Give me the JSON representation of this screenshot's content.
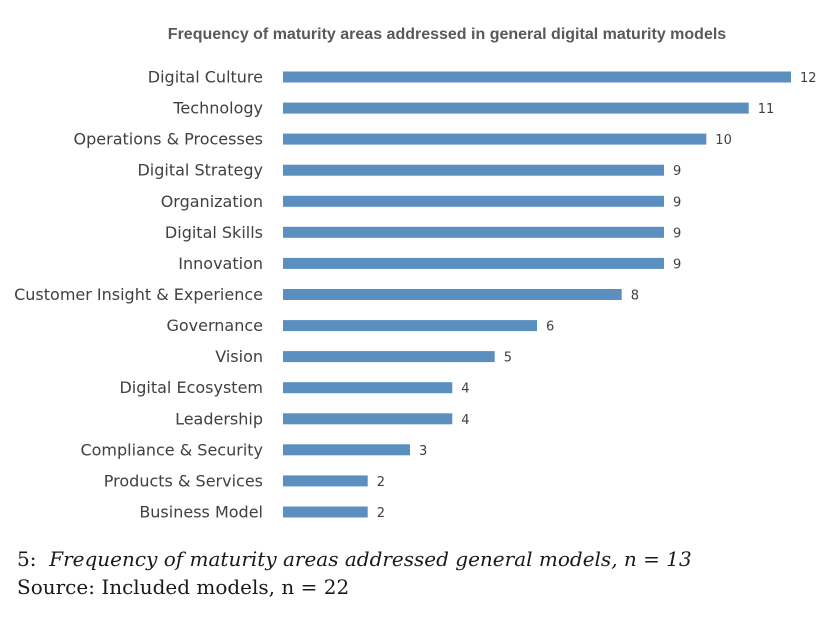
{
  "colors": {
    "bar": "#5b8fc0",
    "title": "#595959",
    "text": "#404040"
  },
  "chart_data": {
    "type": "bar",
    "orientation": "horizontal",
    "title": "Frequency of maturity areas addressed in general digital maturity models",
    "xlabel": "",
    "ylabel": "",
    "xlim": [
      0,
      12
    ],
    "grid": false,
    "legend": "none",
    "categories": [
      "Digital Culture",
      "Technology",
      "Operations & Processes",
      "Digital Strategy",
      "Organization",
      "Digital Skills",
      "Innovation",
      "Customer Insight & Experience",
      "Governance",
      "Vision",
      "Digital Ecosystem",
      "Leadership",
      "Compliance & Security",
      "Products & Services",
      "Business Model"
    ],
    "values": [
      12,
      11,
      10,
      9,
      9,
      9,
      9,
      8,
      6,
      5,
      4,
      4,
      3,
      2,
      2
    ],
    "data_labels": [
      "12",
      "11",
      "10",
      "9",
      "9",
      "9",
      "9",
      "8",
      "6",
      "5",
      "4",
      "4",
      "3",
      "2",
      "2"
    ]
  },
  "caption": {
    "number": "5:",
    "text": "Frequency of maturity areas addressed general models, n = 13",
    "source": "Source: Included models, n = 22"
  }
}
